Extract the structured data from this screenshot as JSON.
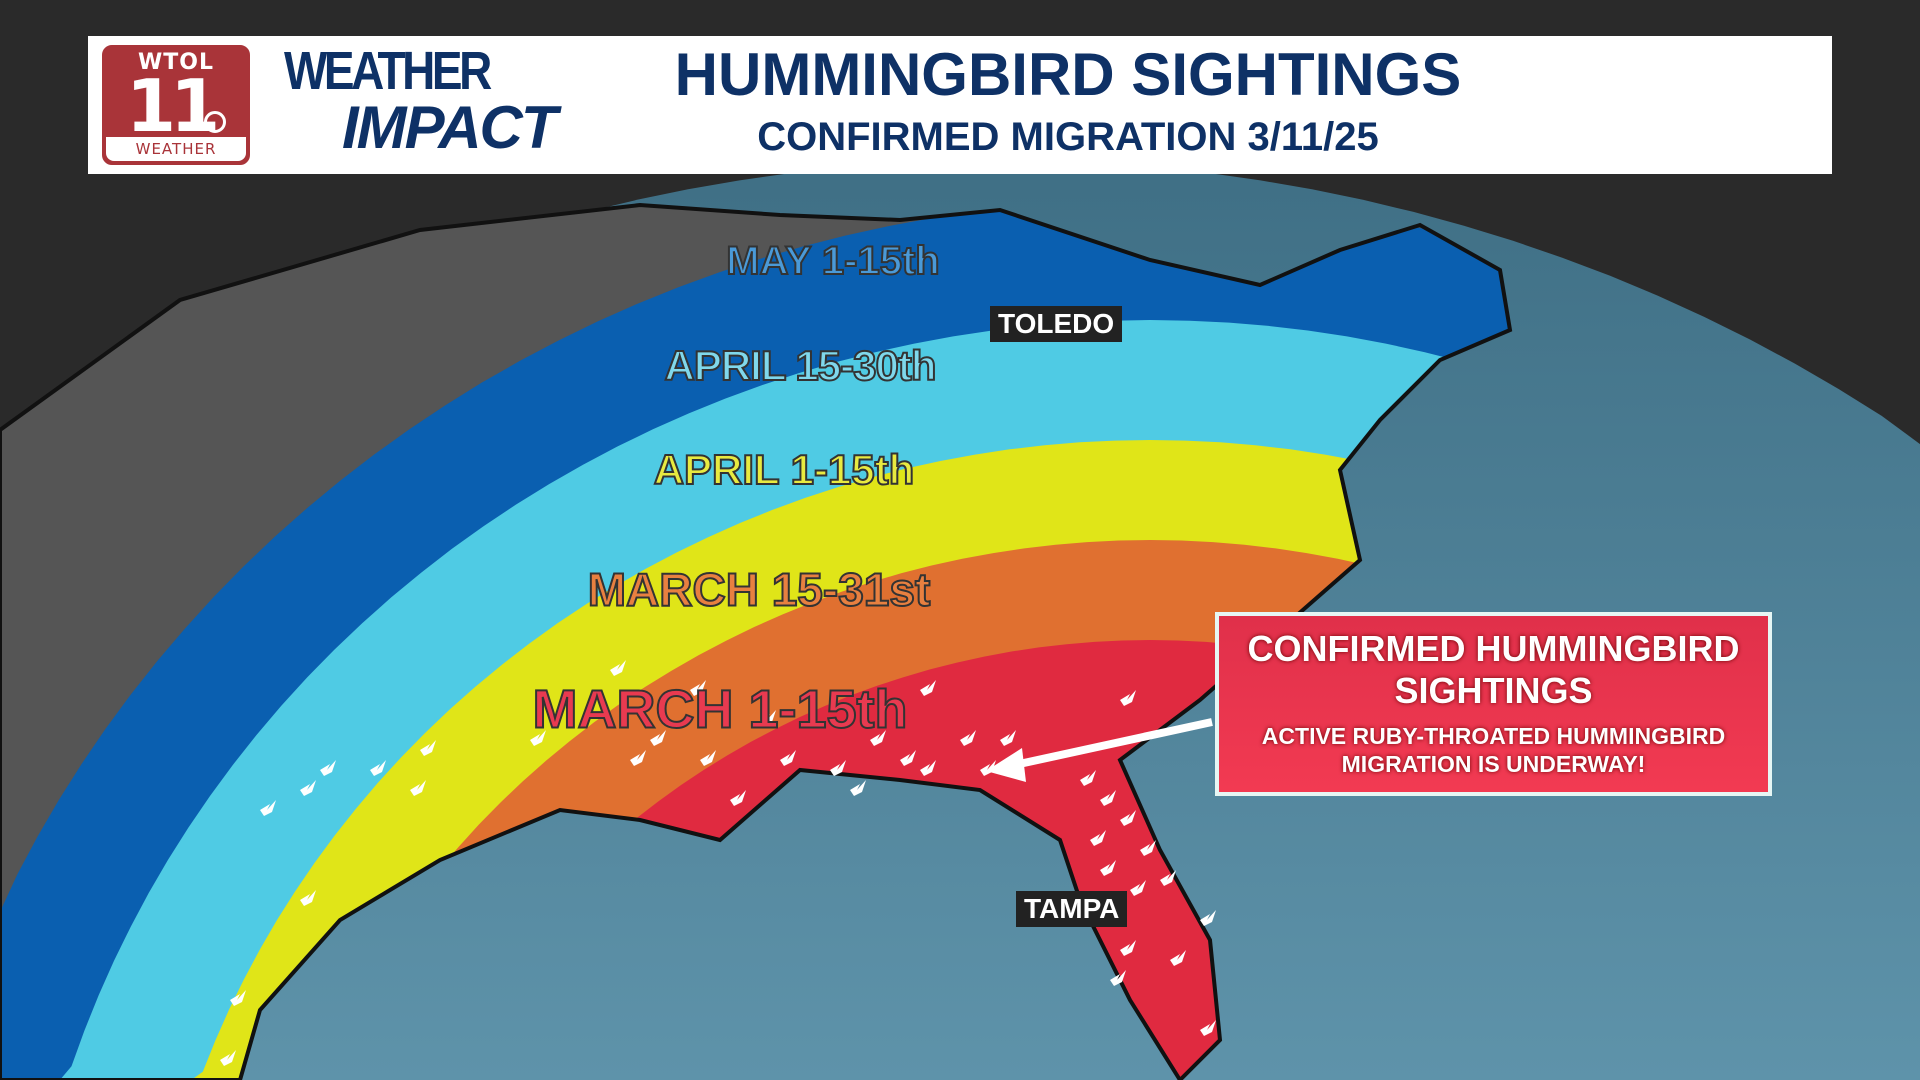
{
  "header": {
    "station_logo": {
      "call_letters": "WTOL",
      "channel": "11",
      "footer": "WEATHER"
    },
    "brand_logo": {
      "line1": "WEATHER",
      "line2": "IMPACT"
    },
    "title": "HUMMINGBIRD SIGHTINGS",
    "subtitle": "CONFIRMED MIGRATION 3/11/25"
  },
  "map": {
    "bands": [
      {
        "label": "MAY 1-15th",
        "color": "#0a5fb0",
        "text_color": "#4a9ad8"
      },
      {
        "label": "APRIL 15-30th",
        "color": "#4fcbe4",
        "text_color": "#7fd8ec"
      },
      {
        "label": "APRIL 1-15th",
        "color": "#e0e518",
        "text_color": "#e8ea40"
      },
      {
        "label": "MARCH 15-31st",
        "color": "#e07030",
        "text_color": "#e88040"
      },
      {
        "label": "MARCH 1-15th",
        "color": "#e02a40",
        "text_color": "#e83a50"
      }
    ],
    "cities": [
      "TOLEDO",
      "TAMPA"
    ],
    "ocean_color": "#5b8fa5",
    "marker_icon": "hummingbird-icon"
  },
  "callout": {
    "heading": "CONFIRMED HUMMINGBIRD SIGHTINGS",
    "body": "ACTIVE RUBY-THROATED HUMMINGBIRD MIGRATION IS UNDERWAY!"
  }
}
